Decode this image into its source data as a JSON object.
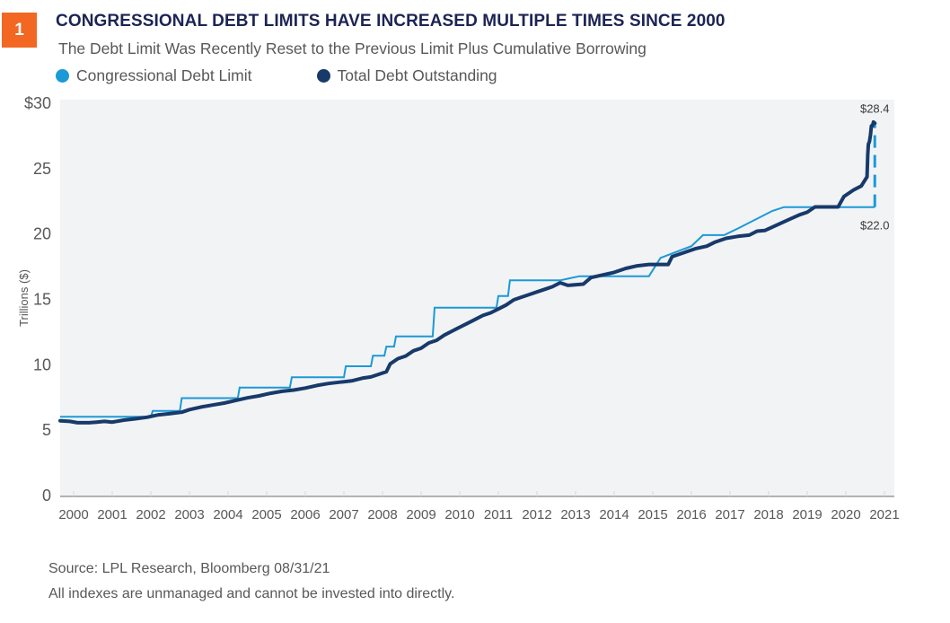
{
  "figure": {
    "number": "1",
    "title": "CONGRESSIONAL DEBT LIMITS HAVE INCREASED MULTIPLE TIMES SINCE 2000",
    "subtitle": "The Debt Limit Was Recently Reset to the Previous Limit Plus Cumulative Borrowing",
    "source": "Source: LPL Research, Bloomberg   08/31/21",
    "disclaimer": "All indexes are unmanaged and cannot be invested into directly."
  },
  "colors": {
    "badge": "#f26722",
    "title": "#1c2454",
    "debt_limit": "#1a9ad6",
    "debt_outstanding": "#173a6a",
    "plot_bg": "#f2f3f5",
    "text": "#58585a"
  },
  "chart_data": {
    "type": "line",
    "title": "CONGRESSIONAL DEBT LIMITS HAVE INCREASED MULTIPLE TIMES SINCE 2000",
    "xlabel": "",
    "ylabel": "Trillions ($)",
    "xlim": [
      1999.65,
      2021.25
    ],
    "ylim": [
      0,
      30
    ],
    "x_ticks": [
      "2000",
      "2001",
      "2002",
      "2003",
      "2004",
      "2005",
      "2006",
      "2007",
      "2008",
      "2009",
      "2010",
      "2011",
      "2012",
      "2013",
      "2014",
      "2015",
      "2016",
      "2017",
      "2018",
      "2019",
      "2020",
      "2021"
    ],
    "y_ticks": [
      "$30",
      "25",
      "20",
      "15",
      "10",
      "5",
      "0"
    ],
    "y_tick_values": [
      30,
      25,
      20,
      15,
      10,
      5,
      0
    ],
    "legend": [
      "Congressional Debt Limit",
      "Total Debt Outstanding"
    ],
    "legend_position": "top-left",
    "grid": false,
    "annotations": [
      {
        "text": "$28.4",
        "x": 2020.75,
        "y": 28.4
      },
      {
        "text": "$22.0",
        "x": 2020.75,
        "y": 22.0
      }
    ],
    "series": [
      {
        "name": "Congressional Debt Limit",
        "style": "step",
        "points": [
          [
            1999.65,
            5.95
          ],
          [
            2002.0,
            5.95
          ],
          [
            2002.05,
            6.4
          ],
          [
            2002.75,
            6.4
          ],
          [
            2002.8,
            7.38
          ],
          [
            2004.25,
            7.38
          ],
          [
            2004.3,
            8.18
          ],
          [
            2005.6,
            8.18
          ],
          [
            2005.65,
            8.97
          ],
          [
            2007.0,
            8.97
          ],
          [
            2007.05,
            9.82
          ],
          [
            2007.7,
            9.82
          ],
          [
            2007.75,
            10.62
          ],
          [
            2008.05,
            10.62
          ],
          [
            2008.1,
            11.32
          ],
          [
            2008.3,
            11.32
          ],
          [
            2008.35,
            12.1
          ],
          [
            2009.3,
            12.1
          ],
          [
            2009.35,
            14.29
          ],
          [
            2010.15,
            14.29
          ],
          [
            2010.95,
            14.29
          ],
          [
            2011.0,
            15.19
          ],
          [
            2011.25,
            15.19
          ],
          [
            2011.3,
            16.39
          ],
          [
            2012.35,
            16.39
          ],
          [
            2012.6,
            16.39
          ],
          [
            2013.1,
            16.7
          ],
          [
            2014.9,
            16.7
          ],
          [
            2015.2,
            18.1
          ],
          [
            2016.0,
            19.0
          ],
          [
            2016.3,
            19.85
          ],
          [
            2016.85,
            19.85
          ],
          [
            2017.2,
            20.35
          ],
          [
            2018.1,
            21.7
          ],
          [
            2018.4,
            21.99
          ],
          [
            2020.75,
            21.99
          ]
        ],
        "dashed_extension": [
          [
            2020.75,
            21.99
          ],
          [
            2020.75,
            28.4
          ]
        ]
      },
      {
        "name": "Total Debt Outstanding",
        "points": [
          [
            1999.65,
            5.65
          ],
          [
            1999.9,
            5.6
          ],
          [
            2000.1,
            5.5
          ],
          [
            2000.4,
            5.5
          ],
          [
            2000.6,
            5.55
          ],
          [
            2000.8,
            5.6
          ],
          [
            2001.0,
            5.55
          ],
          [
            2001.3,
            5.7
          ],
          [
            2001.6,
            5.8
          ],
          [
            2001.9,
            5.92
          ],
          [
            2002.2,
            6.1
          ],
          [
            2002.5,
            6.2
          ],
          [
            2002.8,
            6.3
          ],
          [
            2003.0,
            6.5
          ],
          [
            2003.3,
            6.7
          ],
          [
            2003.6,
            6.85
          ],
          [
            2003.9,
            7.0
          ],
          [
            2004.2,
            7.2
          ],
          [
            2004.5,
            7.4
          ],
          [
            2004.8,
            7.55
          ],
          [
            2005.1,
            7.75
          ],
          [
            2005.4,
            7.9
          ],
          [
            2005.7,
            8.0
          ],
          [
            2006.0,
            8.15
          ],
          [
            2006.3,
            8.35
          ],
          [
            2006.6,
            8.5
          ],
          [
            2006.9,
            8.6
          ],
          [
            2007.2,
            8.7
          ],
          [
            2007.5,
            8.92
          ],
          [
            2007.7,
            9.0
          ],
          [
            2007.9,
            9.2
          ],
          [
            2008.1,
            9.4
          ],
          [
            2008.2,
            10.0
          ],
          [
            2008.4,
            10.4
          ],
          [
            2008.6,
            10.6
          ],
          [
            2008.8,
            11.0
          ],
          [
            2009.0,
            11.2
          ],
          [
            2009.2,
            11.6
          ],
          [
            2009.4,
            11.8
          ],
          [
            2009.6,
            12.2
          ],
          [
            2009.8,
            12.5
          ],
          [
            2010.0,
            12.8
          ],
          [
            2010.2,
            13.1
          ],
          [
            2010.4,
            13.4
          ],
          [
            2010.6,
            13.7
          ],
          [
            2010.8,
            13.9
          ],
          [
            2011.0,
            14.2
          ],
          [
            2011.2,
            14.5
          ],
          [
            2011.4,
            14.9
          ],
          [
            2011.6,
            15.1
          ],
          [
            2011.8,
            15.3
          ],
          [
            2012.0,
            15.5
          ],
          [
            2012.2,
            15.7
          ],
          [
            2012.4,
            15.9
          ],
          [
            2012.6,
            16.2
          ],
          [
            2012.8,
            16.0
          ],
          [
            2013.2,
            16.1
          ],
          [
            2013.4,
            16.6
          ],
          [
            2013.7,
            16.8
          ],
          [
            2014.0,
            17.0
          ],
          [
            2014.3,
            17.3
          ],
          [
            2014.6,
            17.5
          ],
          [
            2014.9,
            17.6
          ],
          [
            2015.2,
            17.6
          ],
          [
            2015.4,
            17.6
          ],
          [
            2015.5,
            18.2
          ],
          [
            2015.8,
            18.5
          ],
          [
            2016.1,
            18.8
          ],
          [
            2016.4,
            19.0
          ],
          [
            2016.6,
            19.3
          ],
          [
            2016.9,
            19.6
          ],
          [
            2017.2,
            19.75
          ],
          [
            2017.5,
            19.85
          ],
          [
            2017.7,
            20.15
          ],
          [
            2017.9,
            20.2
          ],
          [
            2018.2,
            20.6
          ],
          [
            2018.5,
            21.0
          ],
          [
            2018.8,
            21.4
          ],
          [
            2019.0,
            21.6
          ],
          [
            2019.2,
            22.0
          ],
          [
            2019.5,
            22.0
          ],
          [
            2019.8,
            22.0
          ],
          [
            2019.95,
            22.8
          ],
          [
            2020.2,
            23.3
          ],
          [
            2020.4,
            23.6
          ],
          [
            2020.55,
            24.3
          ],
          [
            2020.65,
            26.0
          ],
          [
            2020.75,
            26.8
          ],
          [
            2020.9,
            27.0
          ],
          [
            2021.05,
            27.5
          ],
          [
            2021.2,
            28.2
          ],
          [
            2021.35,
            28.2
          ],
          [
            2021.5,
            28.5
          ],
          [
            2021.6,
            28.4
          ],
          [
            2021.7,
            28.4
          ]
        ]
      }
    ]
  },
  "legend_items": [
    {
      "label": "Congressional Debt Limit"
    },
    {
      "label": "Total Debt Outstanding"
    }
  ]
}
